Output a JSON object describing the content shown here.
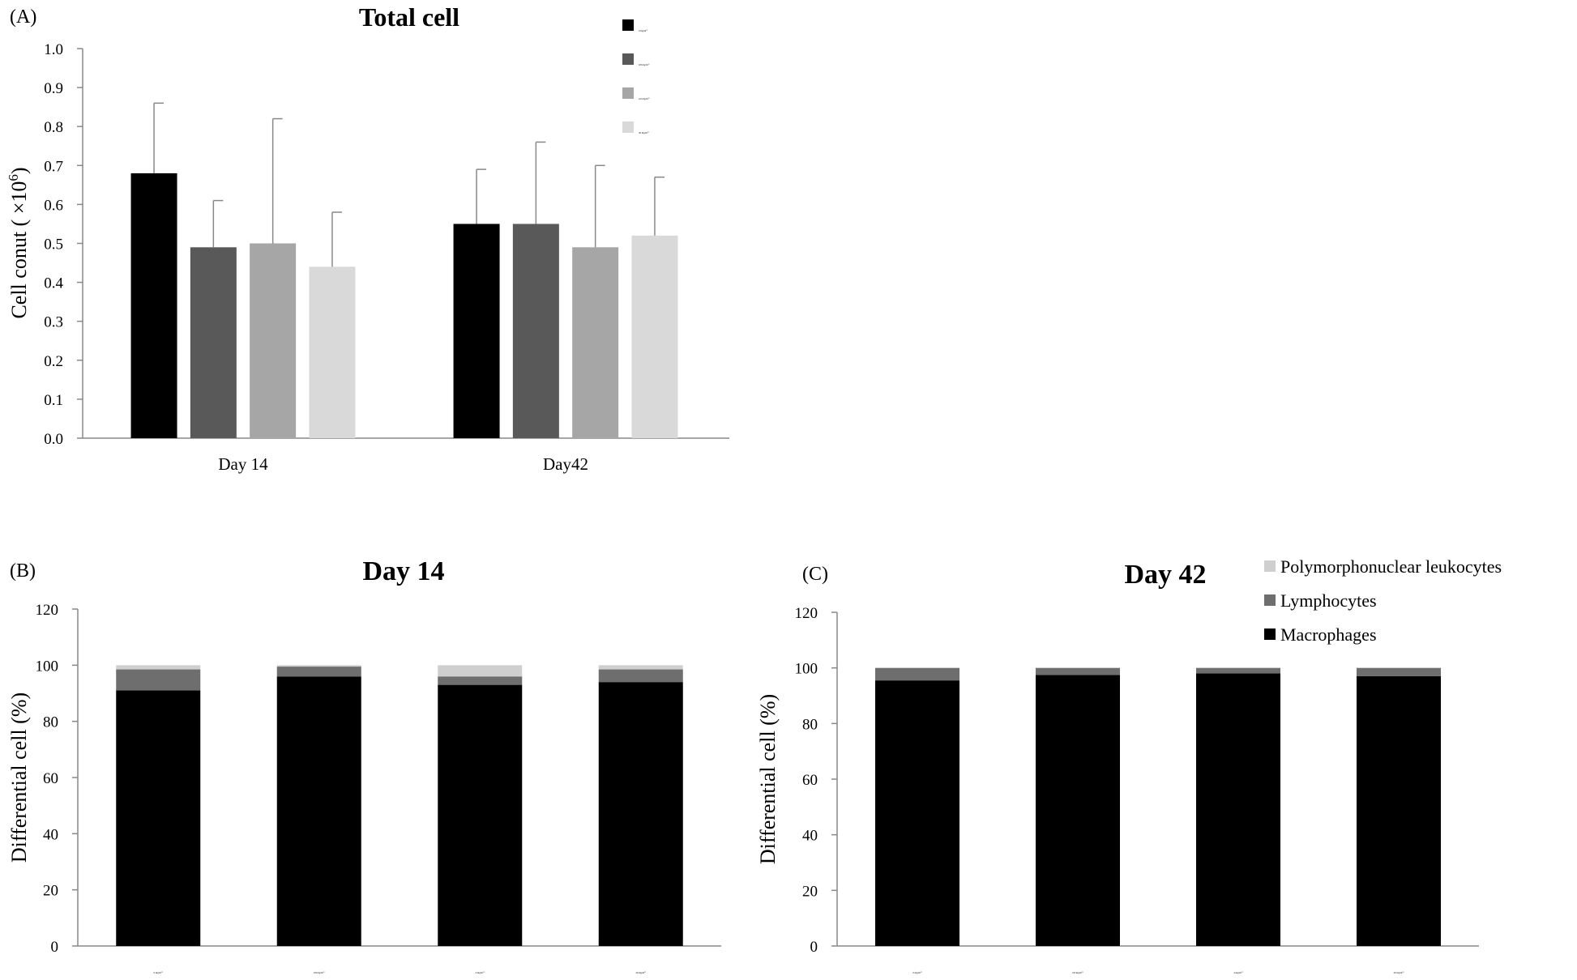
{
  "chart_data": [
    {
      "panel": "(A)",
      "type": "bar",
      "title": "Total cell",
      "ylabel": "Cell conut ( ×10",
      "ylabel_sup": "6",
      "ylabel_close": ")",
      "ylim": [
        0,
        1.0
      ],
      "yticks": [
        "0.0",
        "0.1",
        "0.2",
        "0.3",
        "0.4",
        "0.5",
        "0.6",
        "0.7",
        "0.8",
        "0.9",
        "1.0"
      ],
      "categories": [
        "Day 14",
        "Day42"
      ],
      "legend_position": "top-right",
      "series": [
        {
          "name": "0  mg/m",
          "sup": "3",
          "color": "#000000",
          "values": [
            0.68,
            0.55
          ],
          "errors": [
            0.18,
            0.14
          ]
        },
        {
          "name": "0.8  mg/m",
          "sup": "3",
          "color": "#595959",
          "values": [
            0.49,
            0.55
          ],
          "errors": [
            0.12,
            0.21
          ]
        },
        {
          "name": "4.0  mg/m",
          "sup": "3",
          "color": "#a6a6a6",
          "values": [
            0.5,
            0.49
          ],
          "errors": [
            0.32,
            0.21
          ]
        },
        {
          "name": "20  mg/m",
          "sup": "3",
          "color": "#d9d9d9",
          "values": [
            0.44,
            0.52
          ],
          "errors": [
            0.14,
            0.15
          ]
        }
      ]
    },
    {
      "panel": "(B)",
      "type": "bar",
      "stacked": true,
      "title": "Day 14",
      "ylabel": "Differential  cell (%)",
      "ylim": [
        0,
        120
      ],
      "yticks": [
        "0",
        "20",
        "40",
        "60",
        "80",
        "100",
        "120"
      ],
      "categories": [
        {
          "label": "0  mg/m",
          "sup": "3"
        },
        {
          "label": "0.8  mg/m",
          "sup": "3"
        },
        {
          "label": "4  mg/m",
          "sup": "3"
        },
        {
          "label": "20  mg/m",
          "sup": "3"
        }
      ],
      "series": [
        {
          "name": "Macrophages",
          "color": "#000000",
          "values": [
            91,
            96,
            93,
            94
          ]
        },
        {
          "name": "Lymphocytes",
          "color": "#6e6e6e",
          "values": [
            7.5,
            3.5,
            3,
            4.5
          ]
        },
        {
          "name": "Polymorphonuclear leukocytes",
          "color": "#cfcfcf",
          "values": [
            1.5,
            0.5,
            4,
            1.5
          ]
        }
      ]
    },
    {
      "panel": "(C)",
      "type": "bar",
      "stacked": true,
      "title": "Day 42",
      "ylabel": "Differential  cell (%)",
      "ylim": [
        0,
        120
      ],
      "yticks": [
        "0",
        "20",
        "40",
        "60",
        "80",
        "100",
        "120"
      ],
      "categories": [
        {
          "label": "0  mg/m",
          "sup": "3"
        },
        {
          "label": "0.8  mg/m",
          "sup": "3"
        },
        {
          "label": "4  mg/m",
          "sup": "3"
        },
        {
          "label": "20  mg/m",
          "sup": "3"
        }
      ],
      "legend_position": "top-right",
      "legend": [
        {
          "name": "Polymorphonuclear leukocytes",
          "color": "#cfcfcf"
        },
        {
          "name": "Lymphocytes",
          "color": "#6e6e6e"
        },
        {
          "name": "Macrophages",
          "color": "#000000"
        }
      ],
      "series": [
        {
          "name": "Macrophages",
          "color": "#000000",
          "values": [
            95.5,
            97.5,
            98,
            97
          ]
        },
        {
          "name": "Lymphocytes",
          "color": "#6e6e6e",
          "values": [
            4.5,
            2.5,
            2,
            3
          ]
        },
        {
          "name": "Polymorphonuclear leukocytes",
          "color": "#cfcfcf",
          "values": [
            0,
            0,
            0,
            0
          ]
        }
      ]
    }
  ]
}
